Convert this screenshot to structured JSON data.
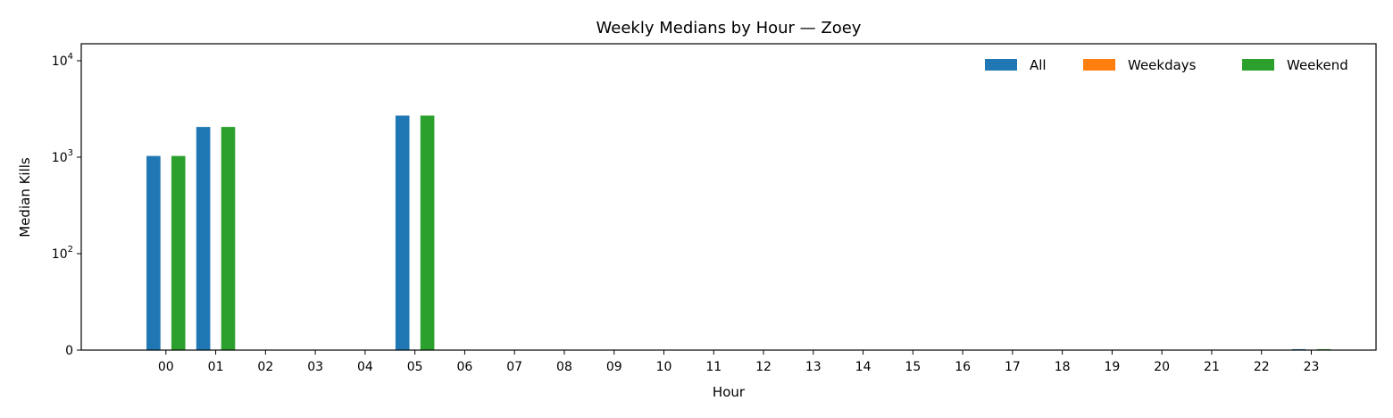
{
  "chart_data": {
    "type": "bar",
    "title": "Weekly Medians by Hour — Zoey",
    "xlabel": "Hour",
    "ylabel": "Median Kills",
    "yscale": "symlog",
    "ylim": [
      0,
      15000
    ],
    "y_ticks": [
      {
        "value": 0,
        "base": "0",
        "exp": ""
      },
      {
        "value": 100,
        "base": "10",
        "exp": "2"
      },
      {
        "value": 1000,
        "base": "10",
        "exp": "3"
      },
      {
        "value": 10000,
        "base": "10",
        "exp": "4"
      }
    ],
    "grid": false,
    "legend": {
      "placement": "top-right",
      "columns": 3
    },
    "categories": [
      "00",
      "01",
      "02",
      "03",
      "04",
      "05",
      "06",
      "07",
      "08",
      "09",
      "10",
      "11",
      "12",
      "13",
      "14",
      "15",
      "16",
      "17",
      "18",
      "19",
      "20",
      "21",
      "22",
      "23"
    ],
    "series": [
      {
        "name": "All",
        "color": "#1f77b4",
        "values": [
          1030,
          2060,
          0,
          0,
          0,
          2700,
          0,
          0,
          0,
          0,
          0,
          0,
          0,
          0,
          0,
          0,
          0,
          0,
          0,
          0,
          0,
          0,
          0,
          1
        ]
      },
      {
        "name": "Weekdays",
        "color": "#ff7f0e",
        "values": [
          0,
          0,
          0,
          0,
          0,
          0,
          0,
          0,
          0,
          0,
          0,
          0,
          0,
          0,
          0,
          0,
          0,
          0,
          0,
          0,
          0,
          0,
          0,
          0
        ]
      },
      {
        "name": "Weekend",
        "color": "#2ca02c",
        "values": [
          1030,
          2060,
          0,
          0,
          0,
          2700,
          0,
          0,
          0,
          0,
          0,
          0,
          0,
          0,
          0,
          0,
          0,
          0,
          0,
          0,
          0,
          0,
          0,
          1
        ]
      }
    ]
  }
}
